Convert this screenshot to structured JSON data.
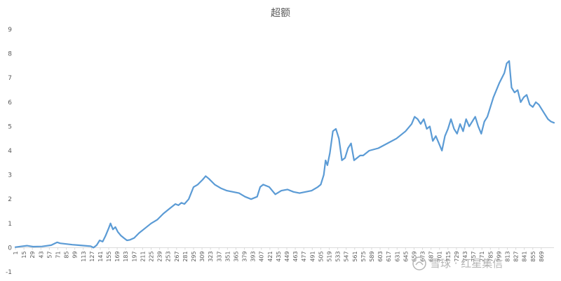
{
  "chart_data": {
    "type": "line",
    "title": "超额",
    "xlabel": "",
    "ylabel": "",
    "ylim": [
      -1,
      9
    ],
    "y_ticks": [
      "-1",
      "0",
      "1",
      "2",
      "3",
      "4",
      "5",
      "6",
      "7",
      "8",
      "9"
    ],
    "x_tick_labels": [
      "1",
      "15",
      "29",
      "43",
      "57",
      "71",
      "85",
      "99",
      "113",
      "127",
      "141",
      "155",
      "169",
      "183",
      "197",
      "211",
      "225",
      "239",
      "253",
      "267",
      "281",
      "295",
      "309",
      "323",
      "337",
      "351",
      "365",
      "379",
      "393",
      "407",
      "421",
      "435",
      "449",
      "463",
      "477",
      "491",
      "505",
      "519",
      "533",
      "547",
      "561",
      "575",
      "589",
      "603",
      "617",
      "631",
      "645",
      "659",
      "673",
      "687",
      "701",
      "715",
      "729",
      "743",
      "757",
      "771",
      "785",
      "799",
      "813",
      "827",
      "841",
      "855",
      "869"
    ],
    "x_range": [
      1,
      890
    ],
    "grid": false,
    "legend": "none",
    "line_color": "#5b9bd5",
    "series": [
      {
        "x": [
          1,
          10,
          20,
          30,
          45,
          60,
          70,
          75,
          85,
          95,
          105,
          115,
          125,
          130,
          135,
          140,
          145,
          150,
          155,
          158,
          162,
          166,
          170,
          175,
          180,
          185,
          190,
          197,
          205,
          215,
          225,
          235,
          245,
          255,
          265,
          270,
          275,
          280,
          287,
          295,
          302,
          310,
          315,
          320,
          330,
          340,
          350,
          360,
          370,
          380,
          390,
          400,
          405,
          410,
          420,
          430,
          440,
          450,
          460,
          470,
          480,
          490,
          500,
          505,
          510,
          513,
          516,
          520,
          525,
          530,
          535,
          540,
          545,
          550,
          555,
          560,
          565,
          570,
          575,
          585,
          600,
          615,
          630,
          645,
          655,
          660,
          665,
          670,
          675,
          680,
          685,
          690,
          695,
          700,
          705,
          710,
          715,
          720,
          725,
          730,
          735,
          740,
          745,
          750,
          755,
          760,
          765,
          770,
          775,
          780,
          790,
          800,
          808,
          812,
          816,
          820,
          825,
          830,
          835,
          840,
          845,
          850,
          855,
          860,
          865,
          870,
          875,
          880,
          885,
          890
        ],
        "y": [
          0.02,
          0.05,
          0.08,
          0.04,
          0.05,
          0.1,
          0.22,
          0.18,
          0.15,
          0.12,
          0.1,
          0.08,
          0.06,
          0.0,
          0.1,
          0.3,
          0.25,
          0.5,
          0.8,
          1.0,
          0.75,
          0.85,
          0.65,
          0.5,
          0.4,
          0.3,
          0.32,
          0.4,
          0.6,
          0.8,
          1.0,
          1.15,
          1.4,
          1.6,
          1.8,
          1.75,
          1.85,
          1.8,
          2.0,
          2.5,
          2.6,
          2.8,
          2.95,
          2.85,
          2.6,
          2.45,
          2.35,
          2.3,
          2.25,
          2.1,
          2.0,
          2.1,
          2.5,
          2.6,
          2.5,
          2.2,
          2.35,
          2.4,
          2.3,
          2.25,
          2.3,
          2.35,
          2.5,
          2.6,
          3.0,
          3.6,
          3.4,
          3.9,
          4.8,
          4.9,
          4.5,
          3.6,
          3.7,
          4.1,
          4.3,
          3.6,
          3.7,
          3.8,
          3.8,
          4.0,
          4.1,
          4.3,
          4.5,
          4.8,
          5.1,
          5.4,
          5.3,
          5.1,
          5.3,
          4.9,
          5.0,
          4.4,
          4.6,
          4.3,
          4.0,
          4.6,
          4.9,
          5.3,
          4.9,
          4.7,
          5.1,
          4.8,
          5.3,
          5.0,
          5.2,
          5.4,
          5.0,
          4.7,
          5.2,
          5.4,
          6.2,
          6.8,
          7.2,
          7.6,
          7.7,
          6.6,
          6.4,
          6.5,
          6.0,
          6.2,
          6.3,
          5.9,
          5.8,
          6.0,
          5.9,
          5.7,
          5.5,
          5.3,
          5.2,
          5.15
        ]
      }
    ]
  },
  "watermark": {
    "text": "雪球 · 红星集信"
  }
}
